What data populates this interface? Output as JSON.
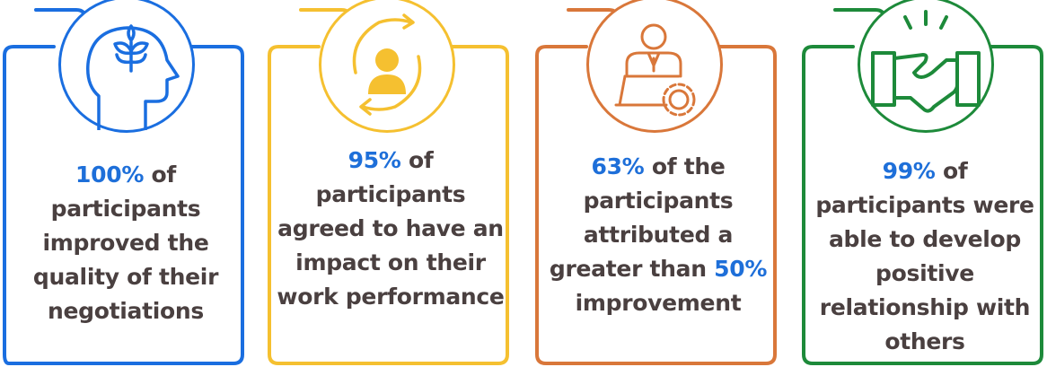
{
  "cards": [
    {
      "color": "#1a6ee0",
      "icon": "head-with-plant-icon",
      "percent": "100%",
      "text_before_percent": "",
      "text_after_percent": " of participants improved the quality of their negotiations",
      "lines": [
        "of",
        "participants",
        "improved the",
        "quality of their",
        "negotiations"
      ]
    },
    {
      "color": "#f5c030",
      "icon": "person-with-cycle-arrows-icon",
      "percent": "95%",
      "text_after_percent": " of participants agreed to have an impact on their work performance",
      "lines": [
        "of",
        "participants",
        "agreed to have an",
        "impact on their",
        "work performance"
      ]
    },
    {
      "color": "#d9773a",
      "icon": "person-at-laptop-with-gear-icon",
      "percent": "63%",
      "text_after_percent": " of the participants attributed a greater than 50% improvement",
      "lines": [
        "of the",
        "participants",
        "attributed a",
        "greater than",
        "50%",
        "improvement"
      ]
    },
    {
      "color": "#1d8a3a",
      "icon": "handshake-icon",
      "percent": "99%",
      "text_after_percent": " of participants were able to develop positive relationship with others",
      "lines": [
        "of",
        "participants were",
        "able to develop",
        "positive",
        "relationship with",
        "others"
      ]
    }
  ],
  "percent_color": "#1e6fd9",
  "text_color": "#4a4040"
}
